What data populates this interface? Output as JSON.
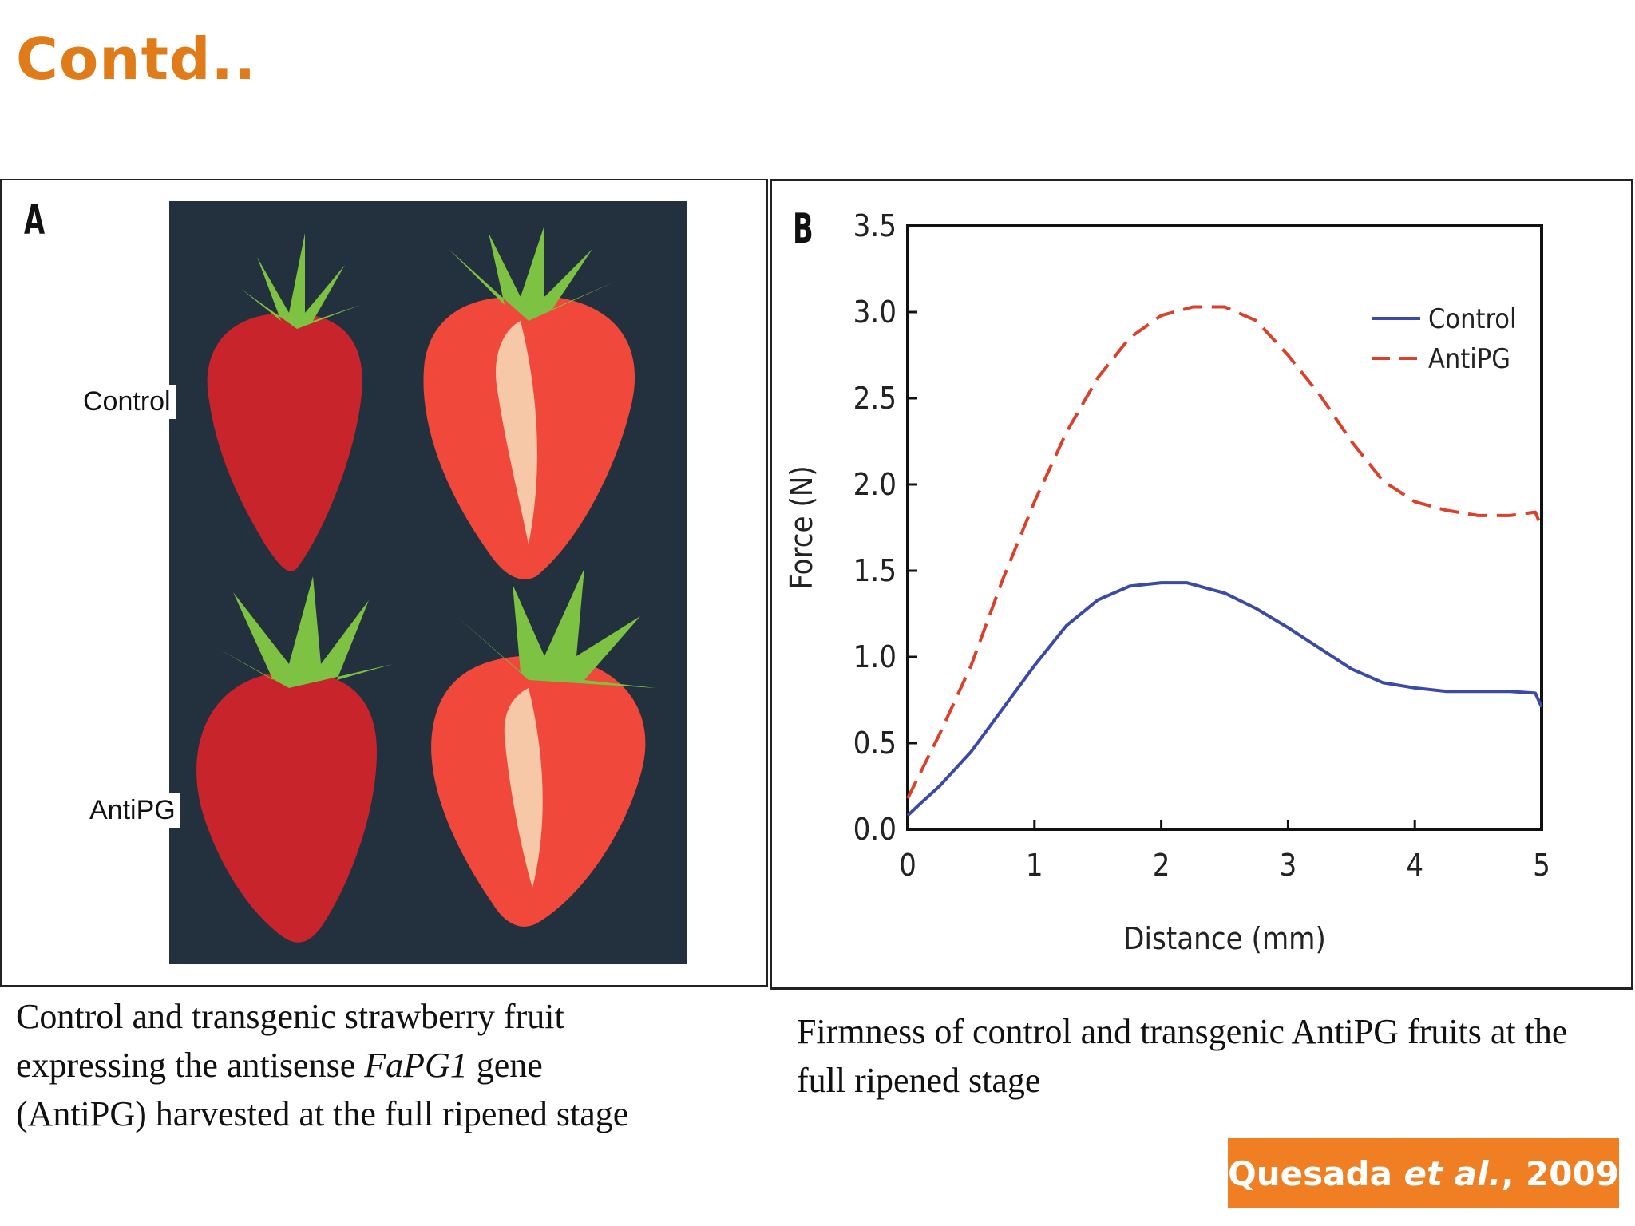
{
  "slide": {
    "title": "Contd..",
    "citation_author": "Quesada ",
    "citation_etal": "et al.",
    "citation_year": ", 2009"
  },
  "panel_a": {
    "letter": "A",
    "label_control": "Control",
    "label_antipg": "AntiPG",
    "caption_line1": "Control and transgenic strawberry fruit",
    "caption_line2_pre": "expressing the antisense ",
    "caption_gene": "FaPG1",
    "caption_line2_post": " gene",
    "caption_line3": "(AntiPG) harvested at the full ripened stage"
  },
  "panel_b": {
    "letter": "B",
    "caption": "Firmness of control and transgenic AntiPG fruits at the full ripened stage"
  },
  "colors": {
    "title": "#e07b1a",
    "citation_bg": "#f07e22",
    "control": "#3a4aa6",
    "antipg": "#d9412b",
    "photo_bg": "#23303d",
    "berry": "#c8242b",
    "berry_flesh": "#f0483a",
    "berry_core": "#f7c8a8",
    "leaf": "#7dc242"
  },
  "chart_data": {
    "type": "line",
    "title": "",
    "xlabel": "Distance (mm)",
    "ylabel": "Force (N)",
    "xlim": [
      0,
      5
    ],
    "ylim": [
      0,
      3.5
    ],
    "xticks": [
      0,
      1,
      2,
      3,
      4,
      5
    ],
    "yticks": [
      0.0,
      0.5,
      1.0,
      1.5,
      2.0,
      2.5,
      3.0,
      3.5
    ],
    "ytick_labels": [
      "0.0",
      "0.5",
      "1.0",
      "1.5",
      "2.0",
      "2.5",
      "3.0",
      "3.5"
    ],
    "grid": false,
    "legend_position": "top-right",
    "series": [
      {
        "name": "Control",
        "style": "solid",
        "x": [
          0,
          0.1,
          0.25,
          0.5,
          0.75,
          1.0,
          1.25,
          1.5,
          1.75,
          2.0,
          2.2,
          2.5,
          2.75,
          3.0,
          3.25,
          3.5,
          3.75,
          4.0,
          4.25,
          4.5,
          4.75,
          4.95,
          5.0
        ],
        "y": [
          0.08,
          0.15,
          0.25,
          0.45,
          0.7,
          0.95,
          1.18,
          1.33,
          1.41,
          1.43,
          1.43,
          1.37,
          1.28,
          1.17,
          1.05,
          0.93,
          0.85,
          0.82,
          0.8,
          0.8,
          0.8,
          0.79,
          0.71
        ]
      },
      {
        "name": "AntiPG",
        "style": "dashed",
        "x": [
          0,
          0.25,
          0.5,
          0.75,
          1.0,
          1.25,
          1.5,
          1.75,
          2.0,
          2.25,
          2.5,
          2.75,
          3.0,
          3.25,
          3.5,
          3.75,
          4.0,
          4.25,
          4.5,
          4.75,
          4.95,
          5.0
        ],
        "y": [
          0.18,
          0.55,
          0.95,
          1.45,
          1.9,
          2.3,
          2.62,
          2.85,
          2.98,
          3.03,
          3.03,
          2.95,
          2.75,
          2.52,
          2.25,
          2.02,
          1.9,
          1.85,
          1.82,
          1.82,
          1.84,
          1.75
        ]
      }
    ]
  }
}
